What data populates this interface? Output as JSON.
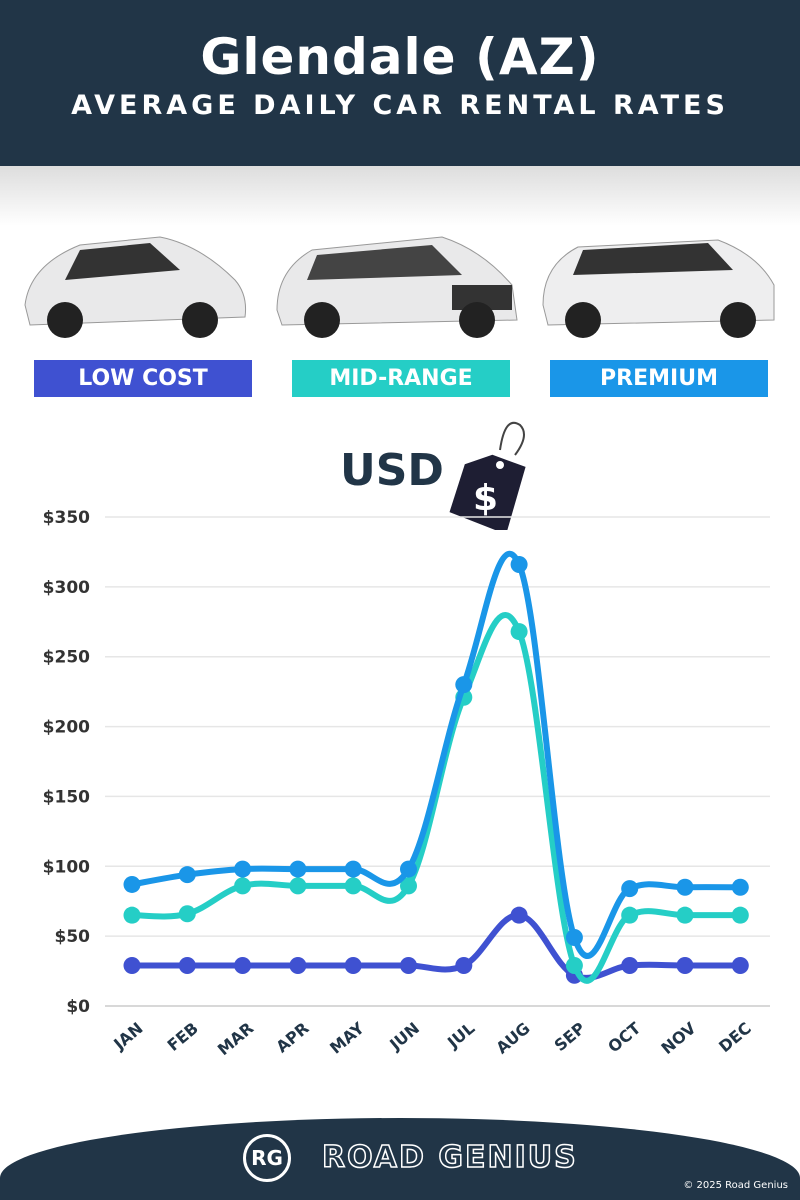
{
  "header": {
    "title": "Glendale (AZ)",
    "subtitle": "AVERAGE DAILY CAR RENTAL RATES"
  },
  "categories_badges": [
    {
      "label": "LOW COST",
      "color": "#3f51d1"
    },
    {
      "label": "MID-RANGE",
      "color": "#25cec6"
    },
    {
      "label": "PREMIUM",
      "color": "#1a96e8"
    }
  ],
  "currency": {
    "label": "USD",
    "icon": "price-tag-dollar-icon",
    "symbol": "$"
  },
  "chart_data": {
    "type": "line",
    "categories": [
      "JAN",
      "FEB",
      "MAR",
      "APR",
      "MAY",
      "JUN",
      "JUL",
      "AUG",
      "SEP",
      "OCT",
      "NOV",
      "DEC"
    ],
    "ylim": [
      0,
      350
    ],
    "yticks": [
      0,
      50,
      100,
      150,
      200,
      250,
      300,
      350
    ],
    "ytick_labels": [
      "$0",
      "$50",
      "$100",
      "$150",
      "$200",
      "$250",
      "$300",
      "$350"
    ],
    "grid": true,
    "series": [
      {
        "name": "LOW COST",
        "color": "#3f51d1",
        "values": [
          29,
          29,
          29,
          29,
          29,
          29,
          29,
          65,
          22,
          29,
          29,
          29
        ]
      },
      {
        "name": "MID-RANGE",
        "color": "#25cec6",
        "values": [
          65,
          66,
          86,
          86,
          86,
          86,
          221,
          268,
          29,
          65,
          65,
          65
        ]
      },
      {
        "name": "PREMIUM",
        "color": "#1a96e8",
        "values": [
          87,
          94,
          98,
          98,
          98,
          98,
          230,
          316,
          49,
          84,
          85,
          85
        ]
      }
    ]
  },
  "footer": {
    "logo": "RG",
    "brand": "ROAD GENIUS",
    "copyright": "© 2025 Road Genius"
  }
}
